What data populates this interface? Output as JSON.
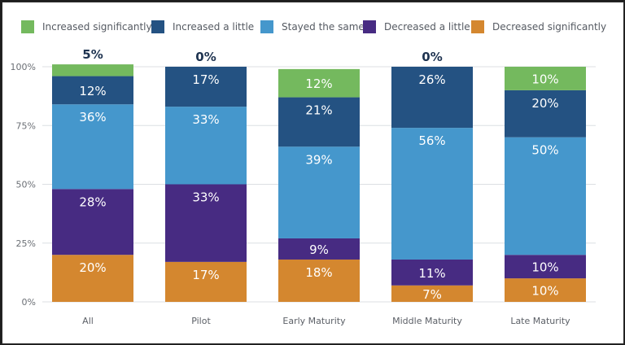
{
  "chart_data": {
    "type": "bar",
    "stacked": true,
    "title": "",
    "xlabel": "",
    "ylabel": "",
    "ylim": [
      0,
      100
    ],
    "yticks": [
      "0%",
      "25%",
      "50%",
      "75%",
      "100%"
    ],
    "ytick_values": [
      0,
      25,
      50,
      75,
      100
    ],
    "grid": true,
    "legend_position": "top",
    "categories": [
      "All",
      "Pilot",
      "Early Maturity",
      "Middle Maturity",
      "Late Maturity"
    ],
    "series": [
      {
        "name": "Decreased significantly",
        "color": "#d4872f",
        "values": [
          20,
          17,
          18,
          7,
          10
        ],
        "labels": [
          "20%",
          "17%",
          "18%",
          "7%",
          "10%"
        ]
      },
      {
        "name": "Decreased a little",
        "color": "#472b82",
        "values": [
          28,
          33,
          9,
          11,
          10
        ],
        "labels": [
          "28%",
          "33%",
          "9%",
          "11%",
          "10%"
        ]
      },
      {
        "name": "Stayed the same",
        "color": "#4597cc",
        "values": [
          36,
          33,
          39,
          56,
          50
        ],
        "labels": [
          "36%",
          "33%",
          "39%",
          "56%",
          "50%"
        ]
      },
      {
        "name": "Increased a little",
        "color": "#245282",
        "values": [
          12,
          17,
          21,
          26,
          20
        ],
        "labels": [
          "12%",
          "17%",
          "21%",
          "26%",
          "20%"
        ]
      },
      {
        "name": "Increased significantly",
        "color": "#74b95e",
        "values": [
          5,
          0,
          12,
          0,
          10
        ],
        "labels": [
          "5%",
          "0%",
          "12%",
          "0%",
          "10%"
        ],
        "label_outside": [
          true,
          true,
          false,
          true,
          false
        ]
      }
    ],
    "legend_order": [
      "Increased significantly",
      "Increased a little",
      "Stayed the same",
      "Decreased a little",
      "Decreased significantly"
    ]
  }
}
